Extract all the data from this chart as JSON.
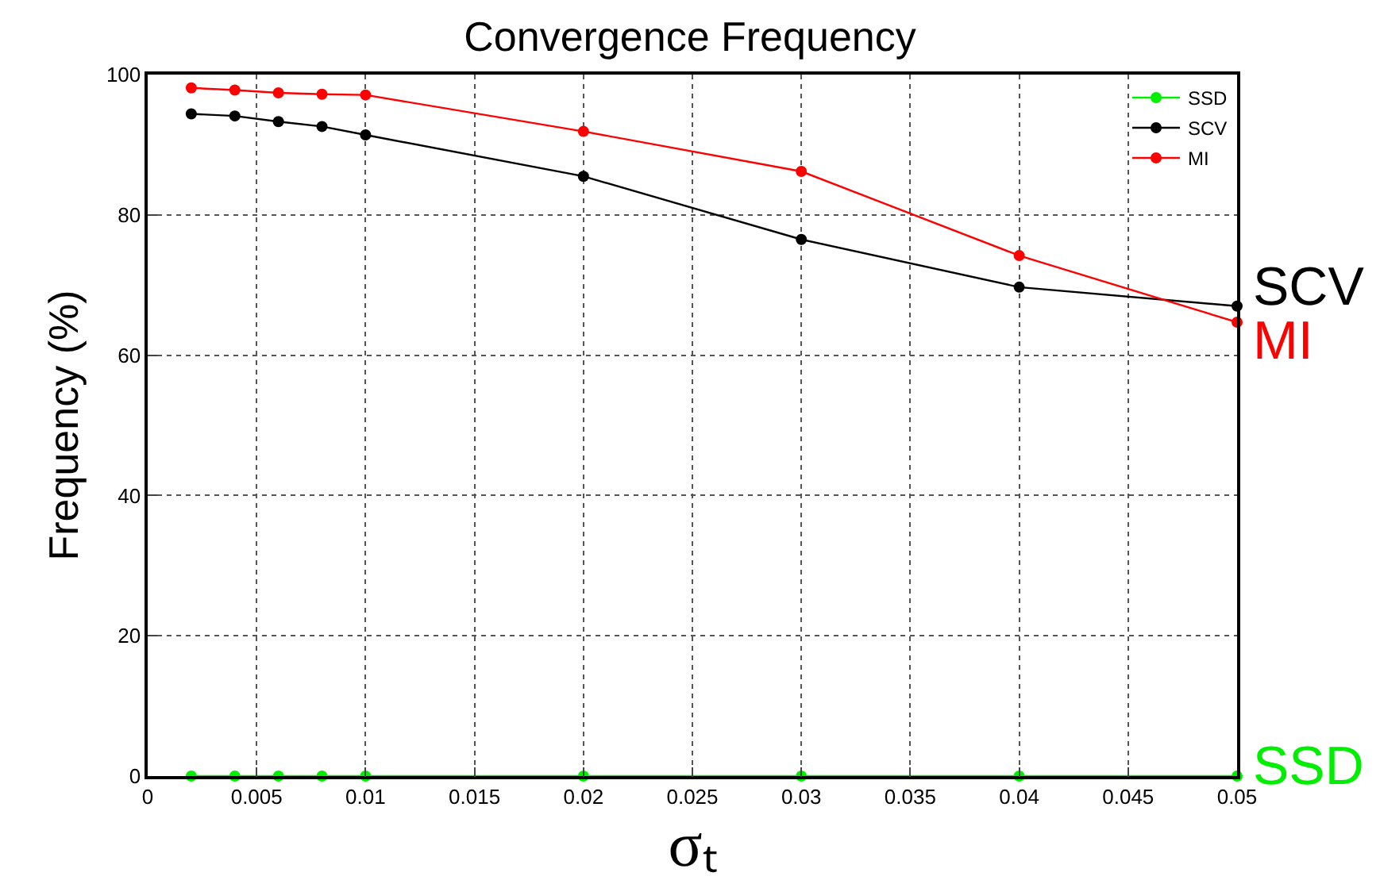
{
  "chart_data": {
    "type": "line",
    "title": "Convergence Frequency",
    "xlabel": "σₜ",
    "ylabel": "Frequency (%)",
    "x": [
      0.002,
      0.004,
      0.006,
      0.008,
      0.01,
      0.02,
      0.03,
      0.04,
      0.05
    ],
    "series": [
      {
        "name": "SSD",
        "color": "#00ee00",
        "values": [
          0,
          0,
          0,
          0,
          0,
          0,
          0,
          0,
          0
        ]
      },
      {
        "name": "SCV",
        "color": "#000000",
        "values": [
          94.4,
          94.1,
          93.3,
          92.6,
          91.4,
          85.5,
          76.5,
          69.7,
          67.0
        ]
      },
      {
        "name": "MI",
        "color": "#ff0000",
        "values": [
          98.1,
          97.8,
          97.4,
          97.2,
          97.1,
          91.9,
          86.2,
          74.2,
          64.7
        ]
      }
    ],
    "annotations": [
      "SSD",
      "SCV",
      "MI"
    ],
    "xlim": [
      0,
      0.05
    ],
    "xticks": [
      0,
      0.005,
      0.01,
      0.015,
      0.02,
      0.025,
      0.03,
      0.035,
      0.04,
      0.045,
      0.05
    ],
    "ylim": [
      0,
      100
    ],
    "yticks": [
      0,
      20,
      40,
      60,
      80,
      100
    ],
    "grid": true,
    "legend": "top right",
    "marker": "circle",
    "line_style": "solid"
  }
}
